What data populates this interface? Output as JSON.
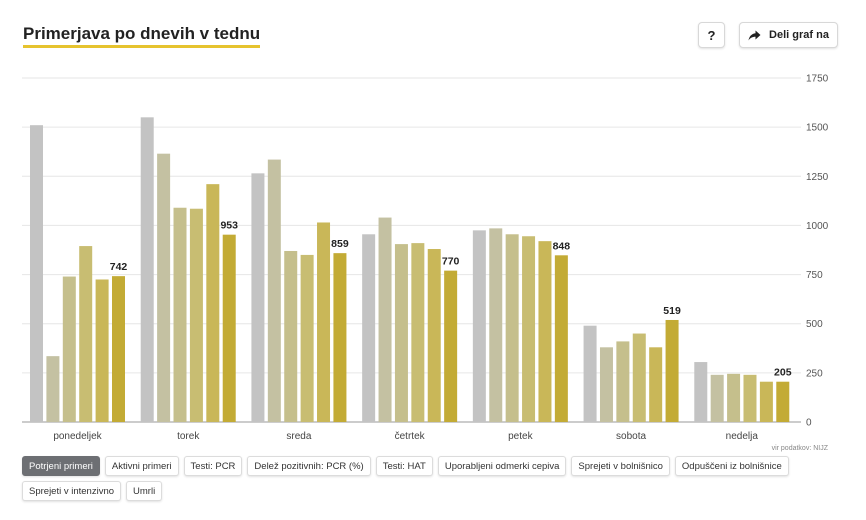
{
  "header": {
    "title": "Primerjava po dnevih v tednu",
    "help_label": "?",
    "share_label": "Deli graf na"
  },
  "source": "vir podatkov: NIJZ",
  "tabs": [
    {
      "label": "Potrjeni primeri",
      "active": true
    },
    {
      "label": "Aktivni primeri",
      "active": false
    },
    {
      "label": "Testi: PCR",
      "active": false
    },
    {
      "label": "Delež pozitivnih: PCR (%)",
      "active": false
    },
    {
      "label": "Testi: HAT",
      "active": false
    },
    {
      "label": "Uporabljeni odmerki cepiva",
      "active": false
    },
    {
      "label": "Sprejeti v bolnišnico",
      "active": false
    },
    {
      "label": "Odpuščeni iz bolnišnice",
      "active": false
    },
    {
      "label": "Sprejeti v intenzivno",
      "active": false
    },
    {
      "label": "Umrli",
      "active": false
    }
  ],
  "colors": {
    "accent": "#e6c32e",
    "series": [
      "#c3c3c3",
      "#c4c1a2",
      "#c5bf8c",
      "#c8bd72",
      "#c9b758",
      "#c3ab35"
    ]
  },
  "chart_data": {
    "type": "bar",
    "categories": [
      "ponedeljek",
      "torek",
      "sreda",
      "četrtek",
      "petek",
      "sobota",
      "nedelja"
    ],
    "series": [
      {
        "values": [
          1510,
          1550,
          1265,
          955,
          975,
          490,
          305
        ]
      },
      {
        "values": [
          335,
          1365,
          1335,
          1040,
          985,
          380,
          240
        ]
      },
      {
        "values": [
          740,
          1090,
          870,
          905,
          955,
          410,
          245
        ]
      },
      {
        "values": [
          895,
          1085,
          850,
          910,
          945,
          450,
          240
        ]
      },
      {
        "values": [
          725,
          1210,
          1015,
          880,
          920,
          380,
          205
        ]
      },
      {
        "values": [
          742,
          953,
          859,
          770,
          848,
          519,
          205
        ]
      }
    ],
    "data_labels": [
      "742",
      "953",
      "859",
      "770",
      "848",
      "519",
      "205"
    ],
    "ylim": [
      0,
      1750
    ],
    "yticks": [
      "0",
      "250",
      "500",
      "750",
      "1000",
      "1250",
      "1500",
      "1750"
    ],
    "grid": true,
    "y_axis_side": "right"
  }
}
